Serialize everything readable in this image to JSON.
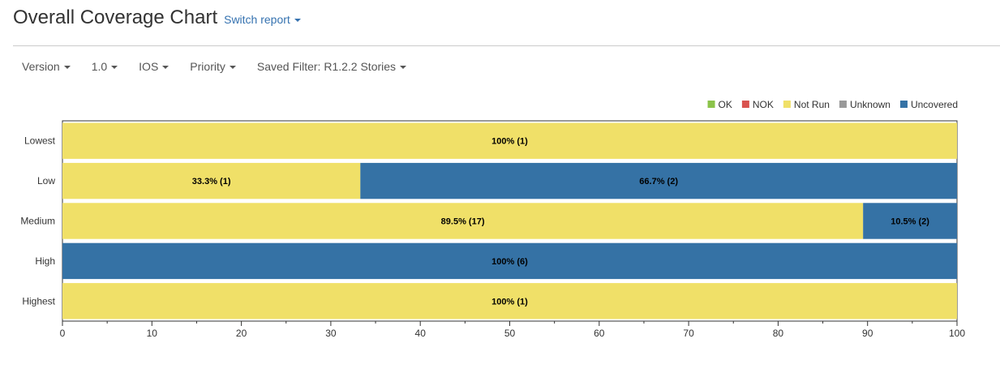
{
  "header": {
    "title": "Overall Coverage Chart",
    "switch_report_label": "Switch report"
  },
  "filters": [
    {
      "label": "Version"
    },
    {
      "label": "1.0"
    },
    {
      "label": "IOS"
    },
    {
      "label": "Priority"
    },
    {
      "label": "Saved Filter: R1.2.2 Stories"
    }
  ],
  "colors": {
    "OK": "#8bc34a",
    "NOK": "#d9534f",
    "Not Run": "#f0e068",
    "Unknown": "#999999",
    "Uncovered": "#3572a5"
  },
  "chart_data": {
    "type": "bar",
    "orientation": "horizontal",
    "stacked": true,
    "categories": [
      "Lowest",
      "Low",
      "Medium",
      "High",
      "Highest"
    ],
    "series": [
      {
        "name": "OK",
        "values": [
          0,
          0,
          0,
          0,
          0
        ],
        "counts": [
          0,
          0,
          0,
          0,
          0
        ],
        "labels": [
          "",
          "",
          "",
          "",
          ""
        ]
      },
      {
        "name": "NOK",
        "values": [
          0,
          0,
          0,
          0,
          0
        ],
        "counts": [
          0,
          0,
          0,
          0,
          0
        ],
        "labels": [
          "",
          "",
          "",
          "",
          ""
        ]
      },
      {
        "name": "Not Run",
        "values": [
          100,
          33.3,
          89.5,
          0,
          100
        ],
        "counts": [
          1,
          1,
          17,
          0,
          1
        ],
        "labels": [
          "100% (1)",
          "33.3% (1)",
          "89.5% (17)",
          "",
          "100% (1)"
        ]
      },
      {
        "name": "Unknown",
        "values": [
          0,
          0,
          0,
          0,
          0
        ],
        "counts": [
          0,
          0,
          0,
          0,
          0
        ],
        "labels": [
          "",
          "",
          "",
          "",
          ""
        ]
      },
      {
        "name": "Uncovered",
        "values": [
          0,
          66.7,
          10.5,
          100,
          0
        ],
        "counts": [
          0,
          2,
          2,
          6,
          0
        ],
        "labels": [
          "",
          "66.7% (2)",
          "10.5% (2)",
          "100% (6)",
          ""
        ]
      }
    ],
    "xlim": [
      0,
      100
    ],
    "xticks": [
      0,
      10,
      20,
      30,
      40,
      50,
      60,
      70,
      80,
      90,
      100
    ],
    "legend": [
      "OK",
      "NOK",
      "Not Run",
      "Unknown",
      "Uncovered"
    ],
    "legend_position": "top-right",
    "grid": false
  }
}
